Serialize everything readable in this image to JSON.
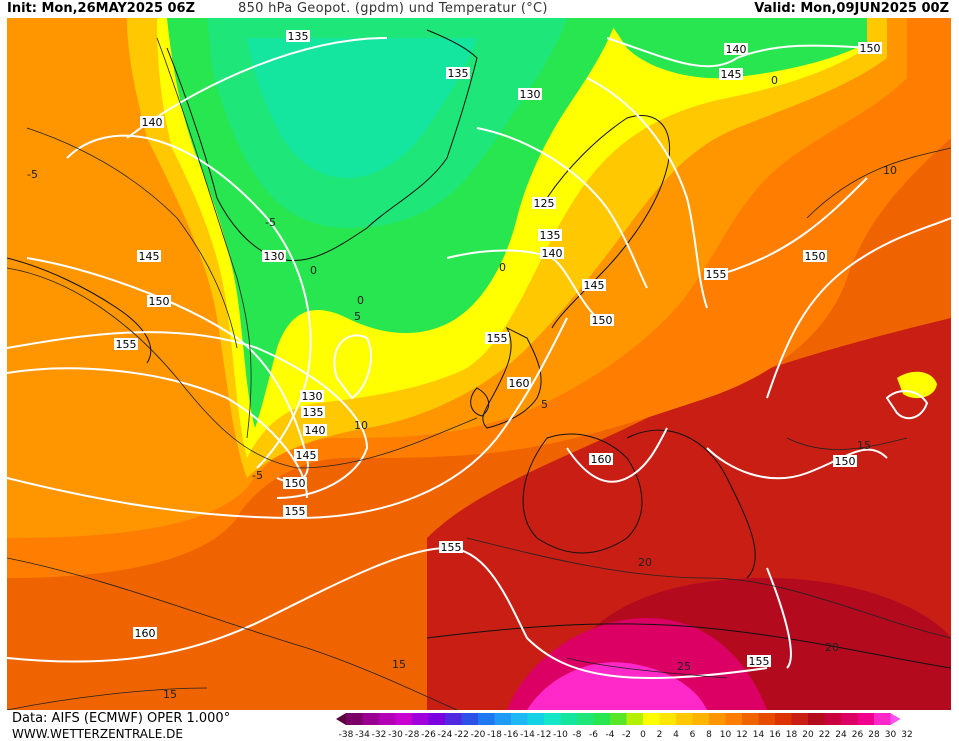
{
  "header": {
    "init": "Init: Mon,26MAY2025 06Z",
    "title": "850 hPa Geopot. (gpdm) und Temperatur (°C)",
    "valid": "Valid: Mon,09JUN2025 00Z"
  },
  "footer": {
    "data_source": "Data: AIFS (ECMWF) OPER 1.000°",
    "website": "WWW.WETTERZENTRALE.DE"
  },
  "legend": {
    "tick_labels": [
      "-38",
      "-34",
      "-32",
      "-30",
      "-28",
      "-26",
      "-24",
      "-22",
      "-20",
      "-18",
      "-16",
      "-14",
      "-12",
      "-10",
      "-8",
      "-6",
      "-4",
      "-2",
      "0",
      "2",
      "4",
      "6",
      "8",
      "10",
      "12",
      "14",
      "16",
      "18",
      "20",
      "22",
      "24",
      "26",
      "28",
      "30",
      "32"
    ],
    "colors": [
      "#5a0040",
      "#7a0068",
      "#9a0090",
      "#b400b4",
      "#c800d0",
      "#a000dc",
      "#7a00e0",
      "#5028e0",
      "#2d50e6",
      "#1e78f0",
      "#1e9bf5",
      "#1eb9f5",
      "#14d2e6",
      "#14e6c8",
      "#14e6a0",
      "#1ee678",
      "#28e650",
      "#5ae628",
      "#b4f000",
      "#ffff00",
      "#ffe600",
      "#ffc800",
      "#ffb400",
      "#ff9600",
      "#ff7d00",
      "#f06400",
      "#e64b00",
      "#dc3200",
      "#c81e14",
      "#b40a1e",
      "#c8003c",
      "#dc0064",
      "#f0008c",
      "#ff28c8",
      "#ff50f0"
    ]
  },
  "geopotential_labels": [
    "135",
    "135",
    "130",
    "140",
    "145",
    "140",
    "150",
    "145",
    "150",
    "155",
    "130",
    "125",
    "135",
    "140",
    "145",
    "150",
    "155",
    "155",
    "150",
    "160",
    "160",
    "150",
    "130",
    "135",
    "140",
    "145",
    "150",
    "155",
    "155",
    "160",
    "155"
  ],
  "temperature_labels": [
    "0",
    "0",
    "-5",
    "5",
    "0",
    "-5",
    "10",
    "15",
    "20",
    "25",
    "15",
    "20",
    "-5",
    "0",
    "5",
    "10",
    "15"
  ]
}
